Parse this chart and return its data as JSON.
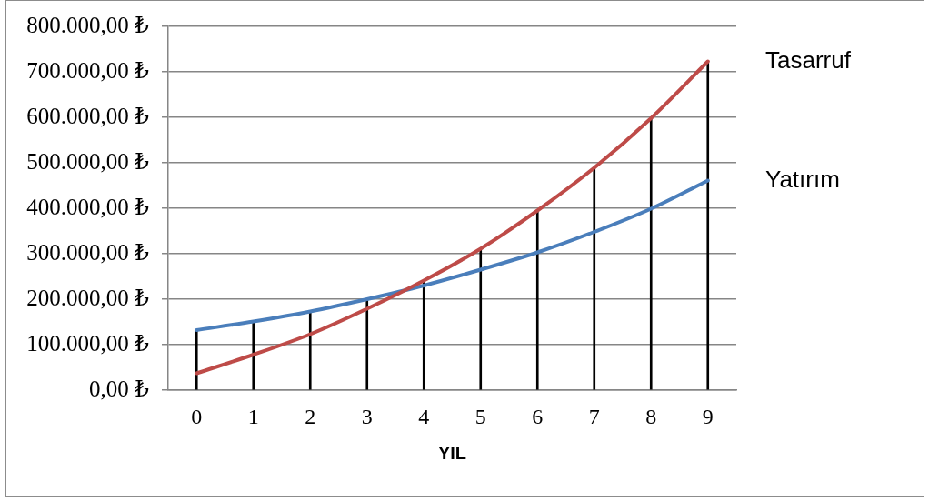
{
  "chart_data": {
    "type": "line",
    "xlabel": "YIL",
    "categories": [
      "0",
      "1",
      "2",
      "3",
      "4",
      "5",
      "6",
      "7",
      "8",
      "9"
    ],
    "series": [
      {
        "name": "Tasarruf",
        "color": "#be4b48",
        "values": [
          37000,
          78000,
          123000,
          179000,
          241000,
          311000,
          395000,
          489000,
          598000,
          723000
        ]
      },
      {
        "name": "Yatırım",
        "color": "#4a7ebb",
        "values": [
          132000,
          151000,
          173000,
          200000,
          230000,
          265000,
          303000,
          348000,
          399000,
          461000
        ]
      },
      {
        "type": "bar",
        "color": "#000000",
        "values": [
          132000,
          151000,
          173000,
          200000,
          241000,
          311000,
          395000,
          489000,
          598000,
          723000
        ]
      }
    ],
    "ylim": [
      0,
      800000
    ],
    "yticks": [
      {
        "value": 0,
        "label": "0,00 ₺"
      },
      {
        "value": 100000,
        "label": "100.000,00 ₺"
      },
      {
        "value": 200000,
        "label": "200.000,00 ₺"
      },
      {
        "value": 300000,
        "label": "300.000,00 ₺"
      },
      {
        "value": 400000,
        "label": "400.000,00 ₺"
      },
      {
        "value": 500000,
        "label": "500.000,00 ₺"
      },
      {
        "value": 600000,
        "label": "600.000,00 ₺"
      },
      {
        "value": 700000,
        "label": "700.000,00 ₺"
      },
      {
        "value": 800000,
        "label": "800.000,00 ₺"
      }
    ],
    "grid": "y",
    "marker": "none",
    "line_style": "solid"
  }
}
